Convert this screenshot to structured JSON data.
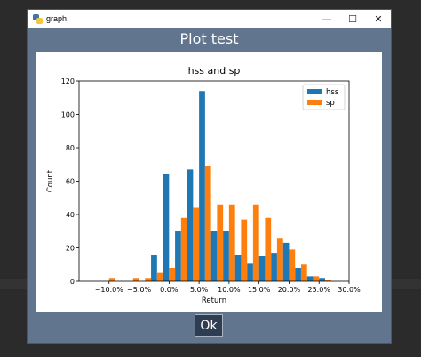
{
  "window": {
    "title": "graph",
    "minimize_glyph": "—",
    "maximize_glyph": "☐",
    "close_glyph": "✕"
  },
  "page": {
    "heading": "Plot test",
    "ok_label": "Ok"
  },
  "colors": {
    "window_bg": "#61758f",
    "hss": "#1f77b4",
    "sp": "#ff7f0e",
    "button_bg": "#2f3d52"
  },
  "chart_data": {
    "type": "bar",
    "title": "hss and sp",
    "xlabel": "Return",
    "ylabel": "Count",
    "xlim": [
      -0.15,
      0.3
    ],
    "ylim": [
      0,
      120
    ],
    "xticks": [
      -0.1,
      -0.05,
      0.0,
      0.05,
      0.1,
      0.15,
      0.2,
      0.25,
      0.3
    ],
    "xtick_labels": [
      "−10.0%",
      "−5.0%",
      "0.0%",
      "5.0%",
      "10.0%",
      "15.0%",
      "20.0%",
      "25.0%",
      "30.0%"
    ],
    "yticks": [
      0,
      20,
      40,
      60,
      80,
      100,
      120
    ],
    "ytick_labels": [
      "0",
      "20",
      "40",
      "60",
      "80",
      "100",
      "120"
    ],
    "legend_position": "top-right",
    "bin_edges": [
      -0.11,
      -0.09,
      -0.07,
      -0.05,
      -0.03,
      -0.01,
      0.01,
      0.03,
      0.05,
      0.07,
      0.09,
      0.11,
      0.13,
      0.15,
      0.17,
      0.19,
      0.21,
      0.23,
      0.25,
      0.27
    ],
    "series": [
      {
        "name": "hss",
        "color": "#1f77b4",
        "values": [
          0,
          0,
          0,
          0,
          16,
          64,
          30,
          67,
          114,
          30,
          30,
          16,
          11,
          15,
          17,
          23,
          8,
          3,
          2
        ]
      },
      {
        "name": "sp",
        "color": "#ff7f0e",
        "values": [
          2,
          0,
          2,
          2,
          5,
          8,
          38,
          44,
          69,
          46,
          46,
          37,
          46,
          38,
          26,
          19,
          10,
          3,
          1
        ]
      }
    ]
  }
}
